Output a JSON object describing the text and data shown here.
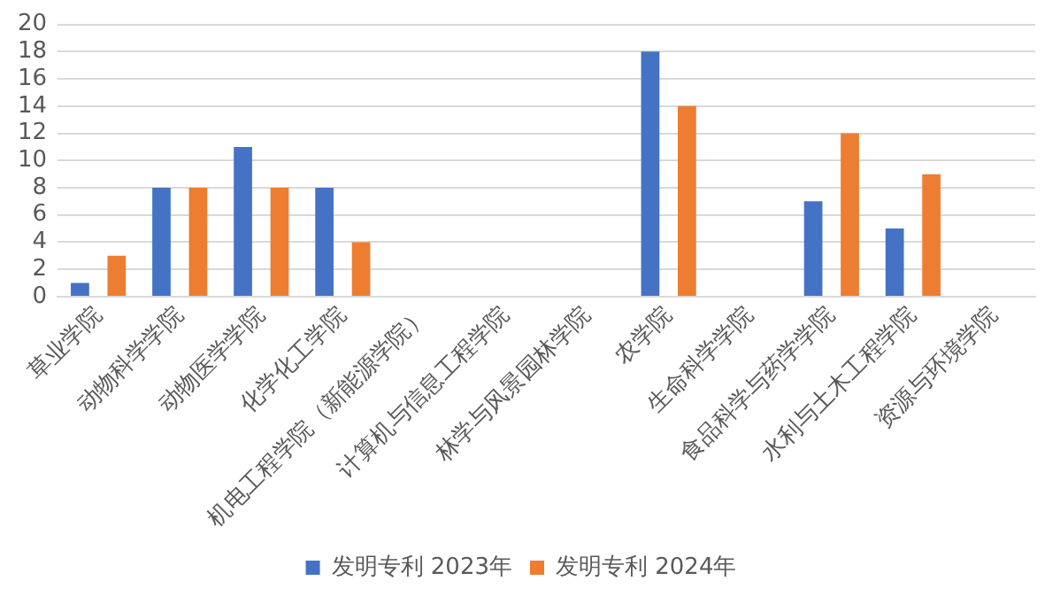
{
  "chart_data": {
    "type": "bar",
    "categories": [
      "草业学院",
      "动物科学学院",
      "动物医学学院",
      "化学化工学院",
      "机电工程学院（新能源学院）",
      "计算机与信息工程学院",
      "林学与风景园林学院",
      "农学院",
      "生命科学学院",
      "食品科学与药学学院",
      "水利与土木工程学院",
      "资源与环境学院"
    ],
    "series": [
      {
        "name": "发明专利 2023年",
        "color": "#4472c4",
        "values": [
          1,
          8,
          11,
          8,
          0,
          0,
          0,
          18,
          0,
          7,
          5,
          0
        ]
      },
      {
        "name": "发明专利 2024年",
        "color": "#ed7d31",
        "values": [
          3,
          8,
          8,
          4,
          0,
          0,
          0,
          14,
          0,
          12,
          9,
          0
        ]
      }
    ],
    "ylim": [
      0,
      20
    ],
    "yticks": [
      0,
      2,
      4,
      6,
      8,
      10,
      12,
      14,
      16,
      18,
      20
    ],
    "grid": "y",
    "legend": "bottom"
  }
}
